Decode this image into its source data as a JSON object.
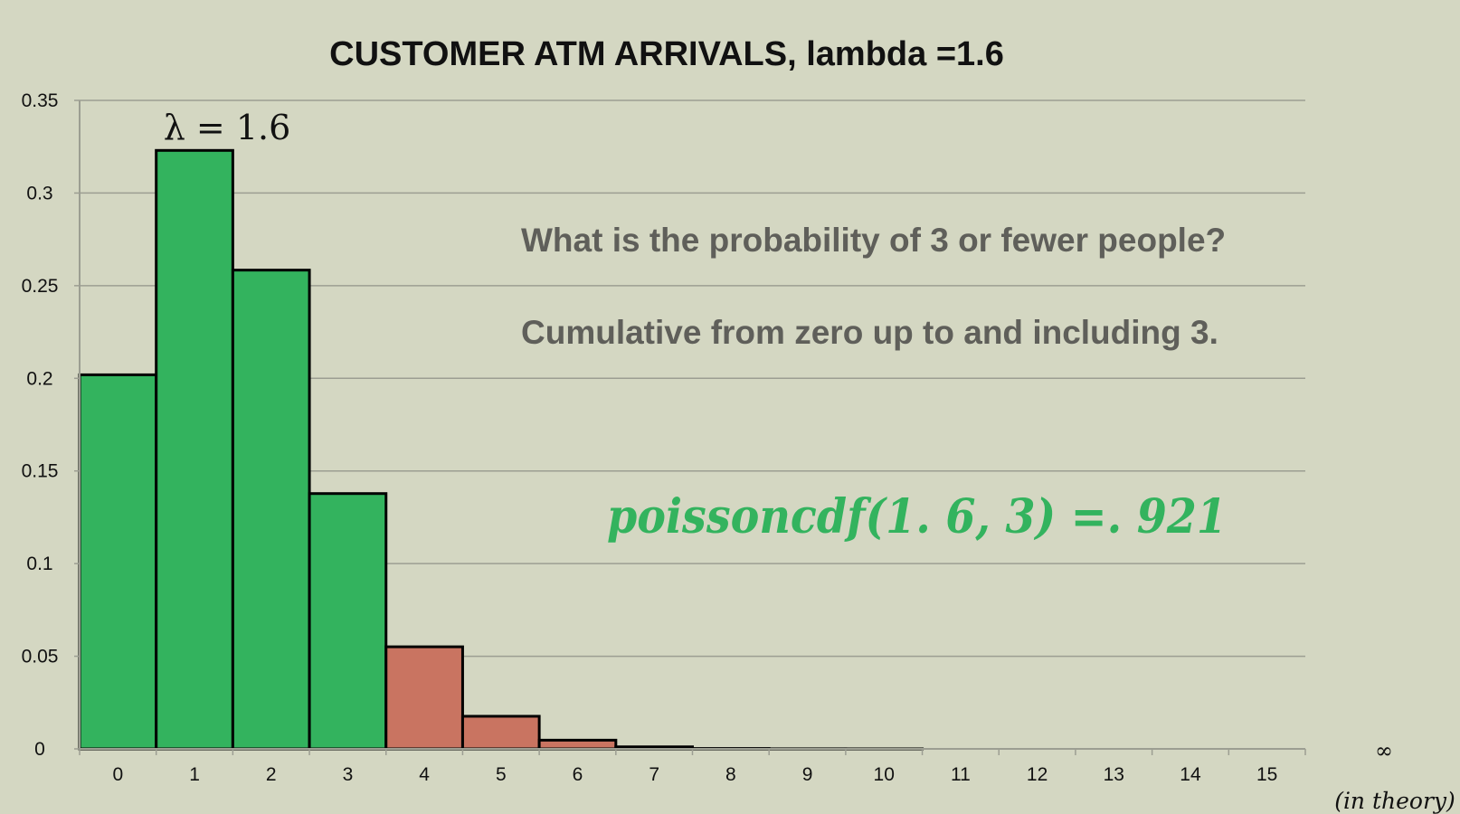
{
  "chart_data": {
    "type": "bar",
    "title": "CUSTOMER ATM ARRIVALS, lambda =1.6",
    "categories": [
      "0",
      "1",
      "2",
      "3",
      "4",
      "5",
      "6",
      "7",
      "8",
      "9",
      "10",
      "11",
      "12",
      "13",
      "14",
      "15"
    ],
    "values": [
      0.2019,
      0.323,
      0.2584,
      0.1378,
      0.0551,
      0.0176,
      0.0047,
      0.0011,
      0.0002,
      4e-05,
      1e-05,
      0.0,
      0.0,
      0.0,
      0.0,
      0.0
    ],
    "highlight_upto": 3,
    "ylim": [
      0,
      0.35
    ],
    "yticks": [
      0,
      0.05,
      0.1,
      0.15,
      0.2,
      0.25,
      0.3,
      0.35
    ],
    "ytick_labels": [
      "0",
      "0.05",
      "0.1",
      "0.15",
      "0.2",
      "0.25",
      "0.3",
      "0.35"
    ],
    "grid": true,
    "colors": {
      "background": "#d4d7c2",
      "included": "#33b35e",
      "excluded": "#c97461",
      "grid": "#9c9e92",
      "formula": "#33b35e",
      "question": "#5f5f5a"
    },
    "annotations": {
      "lambda_label": "λ = 1.6",
      "question": "What is the probability of 3 or fewer people?",
      "explanation": "Cumulative from zero up to and including 3.",
      "formula": "poissoncdf(1. 6, 3) =. 921",
      "infinity": "∞",
      "in_theory": "(in theory)"
    }
  }
}
